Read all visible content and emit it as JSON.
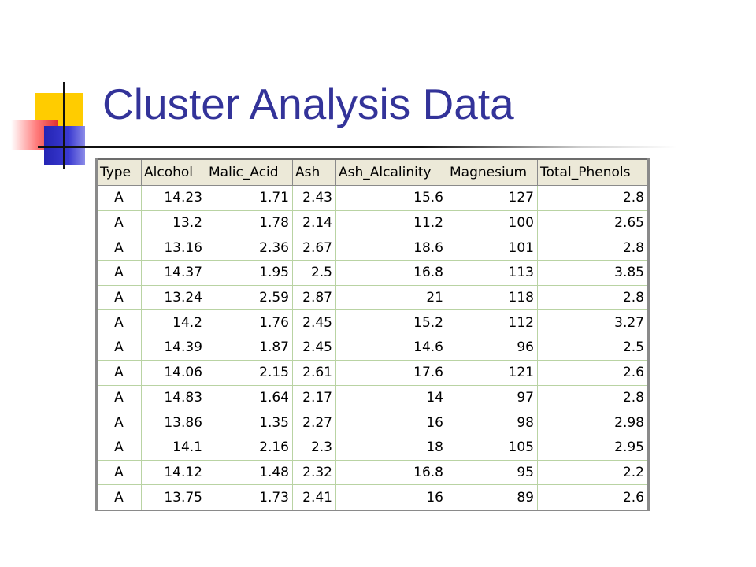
{
  "slide": {
    "title": "Cluster Analysis Data"
  },
  "table": {
    "columns": [
      "Type",
      "Alcohol",
      "Malic_Acid",
      "Ash",
      "Ash_Alcalinity",
      "Magnesium",
      "Total_Phenols"
    ],
    "rows": [
      [
        "A",
        "14.23",
        "1.71",
        "2.43",
        "15.6",
        "127",
        "2.8"
      ],
      [
        "A",
        "13.2",
        "1.78",
        "2.14",
        "11.2",
        "100",
        "2.65"
      ],
      [
        "A",
        "13.16",
        "2.36",
        "2.67",
        "18.6",
        "101",
        "2.8"
      ],
      [
        "A",
        "14.37",
        "1.95",
        "2.5",
        "16.8",
        "113",
        "3.85"
      ],
      [
        "A",
        "13.24",
        "2.59",
        "2.87",
        "21",
        "118",
        "2.8"
      ],
      [
        "A",
        "14.2",
        "1.76",
        "2.45",
        "15.2",
        "112",
        "3.27"
      ],
      [
        "A",
        "14.39",
        "1.87",
        "2.45",
        "14.6",
        "96",
        "2.5"
      ],
      [
        "A",
        "14.06",
        "2.15",
        "2.61",
        "17.6",
        "121",
        "2.6"
      ],
      [
        "A",
        "14.83",
        "1.64",
        "2.17",
        "14",
        "97",
        "2.8"
      ],
      [
        "A",
        "13.86",
        "1.35",
        "2.27",
        "16",
        "98",
        "2.98"
      ],
      [
        "A",
        "14.1",
        "2.16",
        "2.3",
        "18",
        "105",
        "2.95"
      ],
      [
        "A",
        "14.12",
        "1.48",
        "2.32",
        "16.8",
        "95",
        "2.2"
      ],
      [
        "A",
        "13.75",
        "1.73",
        "2.41",
        "16",
        "89",
        "2.6"
      ]
    ]
  },
  "colors": {
    "title": "#333399",
    "accent_yellow": "#ffcc00",
    "accent_red": "#e03030",
    "accent_blue": "#2424b4",
    "header_bg": "#ece9d8",
    "grid_line": "#b9d3a3"
  }
}
